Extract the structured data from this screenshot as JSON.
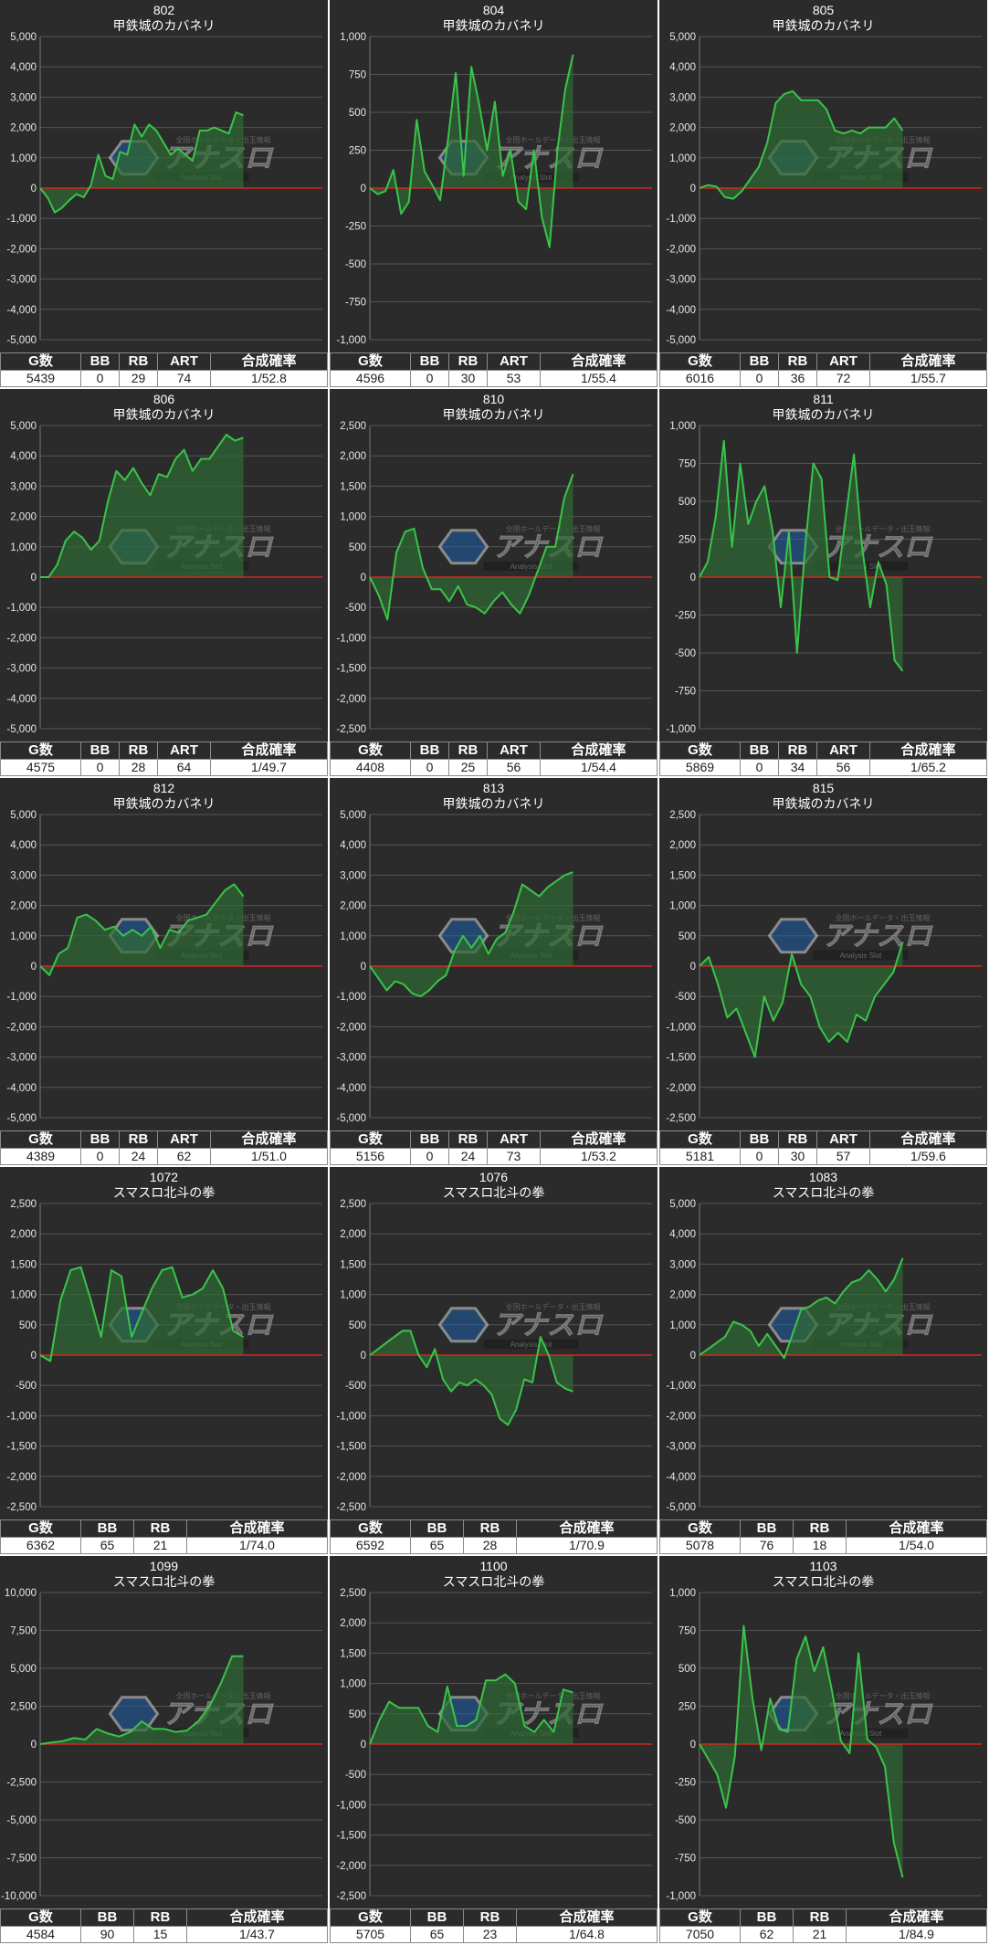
{
  "watermark": {
    "logo_text": "アナスロ",
    "sub_text": "Analysis Slot",
    "top_text": "全国ホールデータ・出玉情報"
  },
  "colors": {
    "background": "#2b2b2b",
    "line": "#39c44a",
    "area": "#2f6b33",
    "zero_line": "#d0281f",
    "grid": "#555555",
    "axis_text": "#e6e6e6"
  },
  "chart_data": [
    {
      "type": "area",
      "title": "802",
      "subtitle": "甲鉄城のカバネリ",
      "ylim": [
        -5000,
        5000
      ],
      "yticks": [
        "5,000",
        "4,000",
        "3,000",
        "2,000",
        "1,000",
        "0",
        "-1,000",
        "-2,000",
        "-3,000",
        "-4,000",
        "-5,000"
      ],
      "values": [
        0,
        -300,
        -800,
        -650,
        -400,
        -200,
        -300,
        100,
        1100,
        400,
        300,
        1200,
        1100,
        2100,
        1700,
        2100,
        1900,
        1500,
        1100,
        1300,
        1100,
        900,
        1900,
        1900,
        2000,
        1900,
        1800,
        2500,
        2400
      ],
      "stats": {
        "headers": [
          "G数",
          "BB",
          "RB",
          "ART",
          "合成確率"
        ],
        "values": [
          "5439",
          "0",
          "29",
          "74",
          "1/52.8"
        ]
      }
    },
    {
      "type": "area",
      "title": "804",
      "subtitle": "甲鉄城のカバネリ",
      "ylim": [
        -1000,
        1000
      ],
      "yticks": [
        "1,000",
        "750",
        "500",
        "250",
        "0",
        "-250",
        "-500",
        "-750",
        "-1,000"
      ],
      "values": [
        0,
        -40,
        -20,
        120,
        -170,
        -90,
        450,
        110,
        20,
        -80,
        320,
        760,
        80,
        800,
        550,
        250,
        570,
        80,
        250,
        -90,
        -140,
        250,
        -190,
        -390,
        250,
        650,
        880
      ],
      "stats": {
        "headers": [
          "G数",
          "BB",
          "RB",
          "ART",
          "合成確率"
        ],
        "values": [
          "4596",
          "0",
          "30",
          "53",
          "1/55.4"
        ]
      }
    },
    {
      "type": "area",
      "title": "805",
      "subtitle": "甲鉄城のカバネリ",
      "ylim": [
        -5000,
        5000
      ],
      "yticks": [
        "5,000",
        "4,000",
        "3,000",
        "2,000",
        "1,000",
        "0",
        "-1,000",
        "-2,000",
        "-3,000",
        "-4,000",
        "-5,000"
      ],
      "values": [
        0,
        100,
        50,
        -300,
        -350,
        -100,
        300,
        700,
        1500,
        2800,
        3100,
        3200,
        2900,
        2900,
        2900,
        2600,
        1900,
        1800,
        1900,
        1800,
        2000,
        2000,
        2000,
        2300,
        1900
      ],
      "stats": {
        "headers": [
          "G数",
          "BB",
          "RB",
          "ART",
          "合成確率"
        ],
        "values": [
          "6016",
          "0",
          "36",
          "72",
          "1/55.7"
        ]
      }
    },
    {
      "type": "area",
      "title": "806",
      "subtitle": "甲鉄城のカバネリ",
      "ylim": [
        -5000,
        5000
      ],
      "yticks": [
        "5,000",
        "4,000",
        "3,000",
        "2,000",
        "1,000",
        "0",
        "-1,000",
        "-2,000",
        "-3,000",
        "-4,000",
        "-5,000"
      ],
      "values": [
        0,
        0,
        400,
        1200,
        1500,
        1300,
        900,
        1200,
        2500,
        3500,
        3200,
        3600,
        3100,
        2700,
        3400,
        3300,
        3900,
        4200,
        3500,
        3900,
        3900,
        4300,
        4700,
        4500,
        4600
      ],
      "stats": {
        "headers": [
          "G数",
          "BB",
          "RB",
          "ART",
          "合成確率"
        ],
        "values": [
          "4575",
          "0",
          "28",
          "64",
          "1/49.7"
        ]
      }
    },
    {
      "type": "area",
      "title": "810",
      "subtitle": "甲鉄城のカバネリ",
      "ylim": [
        -2500,
        2500
      ],
      "yticks": [
        "2,500",
        "2,000",
        "1,500",
        "1,000",
        "500",
        "0",
        "-500",
        "-1,000",
        "-1,500",
        "-2,000",
        "-2,500"
      ],
      "values": [
        0,
        -300,
        -700,
        400,
        750,
        800,
        150,
        -200,
        -200,
        -400,
        -150,
        -450,
        -500,
        -600,
        -400,
        -250,
        -450,
        -600,
        -300,
        100,
        500,
        500,
        1300,
        1700
      ],
      "stats": {
        "headers": [
          "G数",
          "BB",
          "RB",
          "ART",
          "合成確率"
        ],
        "values": [
          "4408",
          "0",
          "25",
          "56",
          "1/54.4"
        ]
      }
    },
    {
      "type": "area",
      "title": "811",
      "subtitle": "甲鉄城のカバネリ",
      "ylim": [
        -1000,
        1000
      ],
      "yticks": [
        "1,000",
        "750",
        "500",
        "250",
        "0",
        "-250",
        "-500",
        "-750",
        "-1,000"
      ],
      "values": [
        0,
        100,
        400,
        900,
        200,
        750,
        350,
        500,
        600,
        300,
        -200,
        300,
        -500,
        200,
        750,
        650,
        0,
        -20,
        400,
        810,
        200,
        -200,
        100,
        -50,
        -550,
        -620
      ],
      "stats": {
        "headers": [
          "G数",
          "BB",
          "RB",
          "ART",
          "合成確率"
        ],
        "values": [
          "5869",
          "0",
          "34",
          "56",
          "1/65.2"
        ]
      }
    },
    {
      "type": "area",
      "title": "812",
      "subtitle": "甲鉄城のカバネリ",
      "ylim": [
        -5000,
        5000
      ],
      "yticks": [
        "5,000",
        "4,000",
        "3,000",
        "2,000",
        "1,000",
        "0",
        "-1,000",
        "-2,000",
        "-3,000",
        "-4,000",
        "-5,000"
      ],
      "values": [
        0,
        -300,
        400,
        600,
        1600,
        1700,
        1500,
        1200,
        1300,
        1000,
        1200,
        1000,
        1300,
        600,
        1200,
        1100,
        1500,
        1600,
        1700,
        2100,
        2500,
        2700,
        2300
      ],
      "stats": {
        "headers": [
          "G数",
          "BB",
          "RB",
          "ART",
          "合成確率"
        ],
        "values": [
          "4389",
          "0",
          "24",
          "62",
          "1/51.0"
        ]
      }
    },
    {
      "type": "area",
      "title": "813",
      "subtitle": "甲鉄城のカバネリ",
      "ylim": [
        -5000,
        5000
      ],
      "yticks": [
        "5,000",
        "4,000",
        "3,000",
        "2,000",
        "1,000",
        "0",
        "-1,000",
        "-2,000",
        "-3,000",
        "-4,000",
        "-5,000"
      ],
      "values": [
        0,
        -400,
        -800,
        -500,
        -600,
        -900,
        -1000,
        -800,
        -500,
        -300,
        500,
        1000,
        600,
        1000,
        400,
        900,
        1100,
        1800,
        2700,
        2500,
        2300,
        2600,
        2800,
        3000,
        3100
      ],
      "stats": {
        "headers": [
          "G数",
          "BB",
          "RB",
          "ART",
          "合成確率"
        ],
        "values": [
          "5156",
          "0",
          "24",
          "73",
          "1/53.2"
        ]
      }
    },
    {
      "type": "area",
      "title": "815",
      "subtitle": "甲鉄城のカバネリ",
      "ylim": [
        -2500,
        2500
      ],
      "yticks": [
        "2,500",
        "2,000",
        "1,500",
        "1,000",
        "500",
        "0",
        "-500",
        "-1,000",
        "-1,500",
        "-2,000",
        "-2,500"
      ],
      "values": [
        0,
        150,
        -300,
        -850,
        -700,
        -1100,
        -1500,
        -500,
        -900,
        -600,
        200,
        -300,
        -500,
        -1000,
        -1250,
        -1100,
        -1250,
        -800,
        -900,
        -500,
        -300,
        -100,
        400
      ],
      "stats": {
        "headers": [
          "G数",
          "BB",
          "RB",
          "ART",
          "合成確率"
        ],
        "values": [
          "5181",
          "0",
          "30",
          "57",
          "1/59.6"
        ]
      }
    },
    {
      "type": "area",
      "title": "1072",
      "subtitle": "スマスロ北斗の拳",
      "ylim": [
        -2500,
        2500
      ],
      "yticks": [
        "2,500",
        "2,000",
        "1,500",
        "1,000",
        "500",
        "0",
        "-500",
        "-1,000",
        "-1,500",
        "-2,000",
        "-2,500"
      ],
      "values": [
        0,
        -100,
        900,
        1400,
        1450,
        900,
        300,
        1400,
        1300,
        300,
        700,
        1100,
        1400,
        1450,
        950,
        1000,
        1100,
        1400,
        1100,
        400,
        300
      ],
      "stats": {
        "headers": [
          "G数",
          "BB",
          "RB",
          "合成確率"
        ],
        "values": [
          "6362",
          "65",
          "21",
          "1/74.0"
        ]
      }
    },
    {
      "type": "area",
      "title": "1076",
      "subtitle": "スマスロ北斗の拳",
      "ylim": [
        -2500,
        2500
      ],
      "yticks": [
        "2,500",
        "2,000",
        "1,500",
        "1,000",
        "500",
        "0",
        "-500",
        "-1,000",
        "-1,500",
        "-2,000",
        "-2,500"
      ],
      "values": [
        0,
        100,
        200,
        300,
        400,
        400,
        0,
        -200,
        100,
        -400,
        -600,
        -450,
        -500,
        -400,
        -500,
        -650,
        -1050,
        -1150,
        -900,
        -400,
        -450,
        300,
        0,
        -450,
        -550,
        -600
      ],
      "stats": {
        "headers": [
          "G数",
          "BB",
          "RB",
          "合成確率"
        ],
        "values": [
          "6592",
          "65",
          "28",
          "1/70.9"
        ]
      }
    },
    {
      "type": "area",
      "title": "1083",
      "subtitle": "スマスロ北斗の拳",
      "ylim": [
        -5000,
        5000
      ],
      "yticks": [
        "5,000",
        "4,000",
        "3,000",
        "2,000",
        "1,000",
        "0",
        "-1,000",
        "-2,000",
        "-3,000",
        "-4,000",
        "-5,000"
      ],
      "values": [
        0,
        200,
        400,
        600,
        1100,
        1000,
        800,
        300,
        700,
        300,
        -100,
        700,
        1500,
        1600,
        1800,
        1900,
        1700,
        2100,
        2400,
        2500,
        2800,
        2500,
        2100,
        2500,
        3200
      ],
      "stats": {
        "headers": [
          "G数",
          "BB",
          "RB",
          "合成確率"
        ],
        "values": [
          "5078",
          "76",
          "18",
          "1/54.0"
        ]
      }
    },
    {
      "type": "area",
      "title": "1099",
      "subtitle": "スマスロ北斗の拳",
      "ylim": [
        -10000,
        10000
      ],
      "yticks": [
        "10,000",
        "7,500",
        "5,000",
        "2,500",
        "0",
        "-2,500",
        "-5,000",
        "-7,500",
        "-10,000"
      ],
      "values": [
        0,
        100,
        200,
        400,
        300,
        1000,
        700,
        500,
        800,
        1500,
        1000,
        1000,
        800,
        900,
        1500,
        2500,
        4000,
        5800,
        5800
      ],
      "stats": {
        "headers": [
          "G数",
          "BB",
          "RB",
          "合成確率"
        ],
        "values": [
          "4584",
          "90",
          "15",
          "1/43.7"
        ]
      }
    },
    {
      "type": "area",
      "title": "1100",
      "subtitle": "スマスロ北斗の拳",
      "ylim": [
        -2500,
        2500
      ],
      "yticks": [
        "2,500",
        "2,000",
        "1,500",
        "1,000",
        "500",
        "0",
        "-500",
        "-1,000",
        "-1,500",
        "-2,000",
        "-2,500"
      ],
      "values": [
        0,
        400,
        700,
        600,
        600,
        600,
        300,
        200,
        950,
        300,
        300,
        400,
        1050,
        1050,
        1150,
        1000,
        300,
        200,
        400,
        200,
        900,
        850
      ],
      "stats": {
        "headers": [
          "G数",
          "BB",
          "RB",
          "合成確率"
        ],
        "values": [
          "5705",
          "65",
          "23",
          "1/64.8"
        ]
      }
    },
    {
      "type": "area",
      "title": "1103",
      "subtitle": "スマスロ北斗の拳",
      "ylim": [
        -1000,
        1000
      ],
      "yticks": [
        "1,000",
        "750",
        "500",
        "250",
        "0",
        "-250",
        "-500",
        "-750",
        "-1,000"
      ],
      "values": [
        0,
        -100,
        -200,
        -420,
        -80,
        780,
        300,
        -40,
        300,
        100,
        80,
        560,
        710,
        480,
        640,
        350,
        20,
        -60,
        600,
        30,
        -20,
        -150,
        -650,
        -880
      ],
      "stats": {
        "headers": [
          "G数",
          "BB",
          "RB",
          "合成確率"
        ],
        "values": [
          "7050",
          "62",
          "21",
          "1/84.9"
        ]
      }
    }
  ]
}
